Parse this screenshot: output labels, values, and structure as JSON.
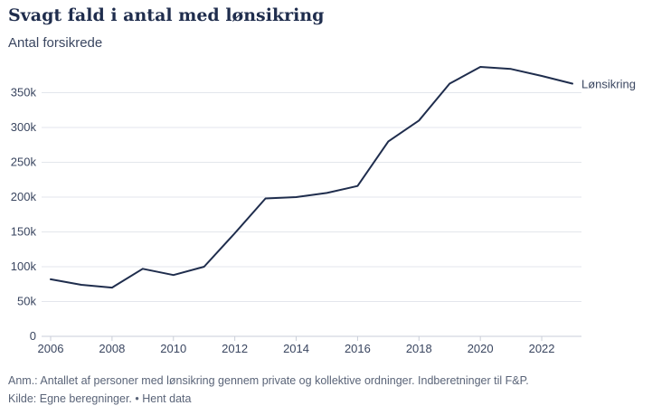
{
  "chart_data": {
    "type": "line",
    "title": "Svagt fald i antal med lønsikring",
    "subtitle": "Antal forsikrede",
    "xlabel": "",
    "ylabel": "",
    "x": [
      2006,
      2007,
      2008,
      2009,
      2010,
      2011,
      2012,
      2013,
      2014,
      2015,
      2016,
      2017,
      2018,
      2019,
      2020,
      2021,
      2022,
      2023
    ],
    "series": [
      {
        "name": "Lønsikring",
        "values": [
          82000,
          74000,
          70000,
          97000,
          88000,
          100000,
          148000,
          198000,
          200000,
          206000,
          216000,
          280000,
          310000,
          363000,
          387000,
          384000,
          374000,
          363000
        ]
      }
    ],
    "xlim": [
      2006,
      2023
    ],
    "ylim": [
      0,
      350000
    ],
    "x_ticks": [
      "2006",
      "2008",
      "2010",
      "2012",
      "2014",
      "2016",
      "2018",
      "2020",
      "2022"
    ],
    "y_ticks": [
      "0",
      "50k",
      "100k",
      "150k",
      "200k",
      "250k",
      "300k",
      "350k"
    ],
    "grid": "horizontal",
    "legend": "inline-right",
    "colors": {
      "line": "#1f2d4d",
      "grid": "#e3e6ec",
      "text": "#3a4660"
    }
  },
  "footer": {
    "note": "Anm.: Antallet af personer med lønsikring gennem private og kollektive ordninger. Indberetninger til F&P.",
    "source_prefix": "Kilde: Egne beregninger. • ",
    "download_link": "Hent data"
  }
}
